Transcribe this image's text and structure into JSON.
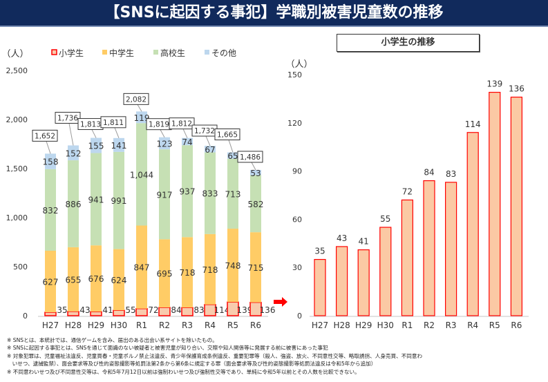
{
  "title": "【SNSに起因する事犯】学職別被害児童数の推移",
  "right_subtitle": "小学生の推移",
  "colors": {
    "title_bg": "#112a5c",
    "elementary": "#f8cbad",
    "elementary_border": "#ff0000",
    "middle": "#ffcc66",
    "high": "#c6e0b4",
    "other": "#bdd7ee",
    "right_bar": "#fbc9a4",
    "arrow": "#ff0000"
  },
  "notes": [
    "※ SNSとは、本統計では、通信ゲームを含み、届出のある出会い系サイトを除いたもの。",
    "※ SNSに起因する事犯とは、SNSを通じて面識のない被疑者と被害児童が知り合い、交際や知人関係等に発展する前に被害にあった事犯",
    "※ 対象犯罪は、児童福祉法違反、児童買春・児童ポルノ禁止法違反、青少年保護育成条例違反、重要犯罪等（殺人、強盗、放火、不同意性交等、略取誘拐、人身売買、不同意わ",
    "　いせつ、逮捕監禁）、面会要求等及び性的姿態撮影等処罰法第2条から第6条に規定する罪（面会要求等及び性的姿態撮影等処罰法違反は令和5年から追加）",
    "※ 不同意わいせつ及び不同意性交等は、令和5年7月12日以前は強制わいせつ及び強制性交等であり、単純に令和5年以前とその人数を比較できない。"
  ],
  "chart_data": [
    {
      "type": "bar",
      "stacked": true,
      "ylabel": "（人）",
      "ylim": [
        0,
        2500
      ],
      "yticks": [
        "0",
        "500",
        "1,000",
        "1,500",
        "2,000",
        "2,500"
      ],
      "categories": [
        "H27",
        "H28",
        "H29",
        "H30",
        "R1",
        "R2",
        "R3",
        "R4",
        "R5",
        "R6"
      ],
      "series": [
        {
          "name": "小学生",
          "values": [
            35,
            43,
            41,
            55,
            72,
            84,
            83,
            114,
            139,
            136
          ]
        },
        {
          "name": "中学生",
          "values": [
            627,
            655,
            676,
            624,
            847,
            695,
            718,
            718,
            748,
            715
          ]
        },
        {
          "name": "高校生",
          "values": [
            832,
            886,
            941,
            991,
            1044,
            917,
            937,
            833,
            713,
            582
          ]
        },
        {
          "name": "その他",
          "values": [
            158,
            152,
            155,
            141,
            119,
            123,
            74,
            67,
            65,
            53
          ]
        }
      ],
      "totals": [
        "1,652",
        "1,736",
        "1,813",
        "1,811",
        "2,082",
        "1,819",
        "1,812",
        "1,732",
        "1,665",
        "1,486"
      ],
      "legend": "top"
    },
    {
      "type": "bar",
      "ylabel": "（人）",
      "ylim": [
        0,
        150
      ],
      "yticks": [
        "0",
        "30",
        "60",
        "90",
        "120",
        "150"
      ],
      "categories": [
        "H27",
        "H28",
        "H29",
        "H30",
        "R1",
        "R2",
        "R3",
        "R4",
        "R5",
        "R6"
      ],
      "values": [
        35,
        43,
        41,
        55,
        72,
        84,
        83,
        114,
        139,
        136
      ]
    }
  ]
}
